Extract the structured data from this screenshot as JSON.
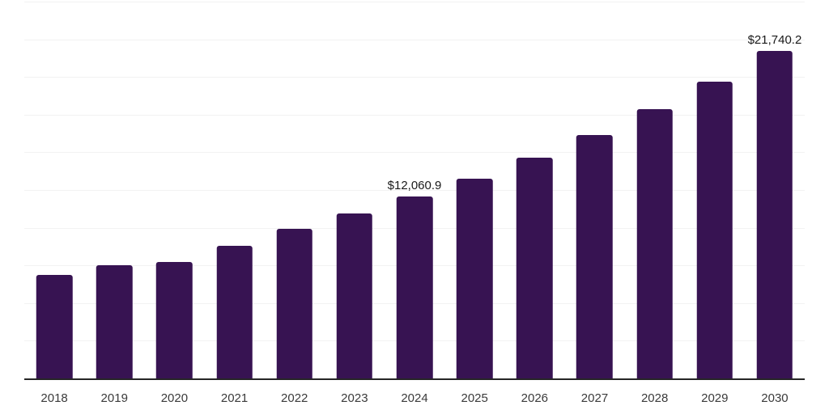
{
  "chart_data": {
    "type": "bar",
    "title": "",
    "xlabel": "",
    "ylabel": "",
    "categories": [
      "2018",
      "2019",
      "2020",
      "2021",
      "2022",
      "2023",
      "2024",
      "2025",
      "2026",
      "2027",
      "2028",
      "2029",
      "2030"
    ],
    "values": [
      6860,
      7530,
      7715,
      8785,
      9905,
      10945,
      12060.9,
      13270,
      14660,
      16125,
      17860,
      19705,
      21740.2
    ],
    "value_labels": [
      "",
      "",
      "",
      "",
      "",
      "",
      "$12,060.9",
      "",
      "",
      "",
      "",
      "",
      "$21,740.2"
    ],
    "ylim": [
      0,
      25000
    ],
    "gridline_step": 2500,
    "grid": "horizontal-only",
    "legend": "none",
    "y_axis_tick_labels": "none",
    "colors": {
      "bar": "#371352",
      "grid": "#f2f2f2",
      "axis_line": "#262626",
      "tick_label": "#3a3a3a",
      "value_label": "#1a1a1a",
      "background": "#ffffff"
    }
  }
}
